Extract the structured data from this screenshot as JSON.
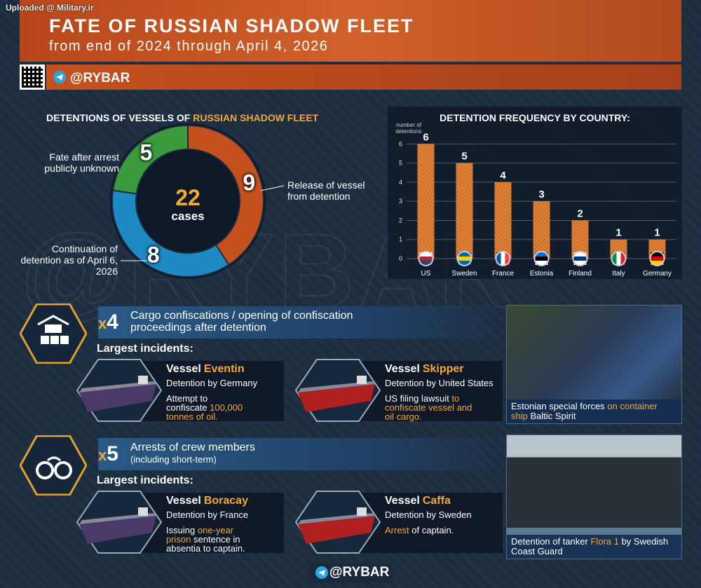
{
  "watermark": "Uploaded @ Military.ir",
  "header": {
    "title": "FATE OF RUSSIAN SHADOW FLEET",
    "subtitle": "from end of 2024 through April 4, 2026",
    "handle": "@RYBAR"
  },
  "chart_data": [
    {
      "type": "donut",
      "title": "DETENTIONS OF VESSELS OF",
      "title_highlight": "RUSSIAN SHADOW FLEET",
      "total": 22,
      "total_label": "cases",
      "categories": [
        "Release of vessel from detention",
        "Continuation of detention as of April 6, 2026",
        "Fate after arrest publicly unknown"
      ],
      "values": [
        9,
        8,
        5
      ],
      "colors": [
        "#c4501e",
        "#1e8ac4",
        "#3a9a3c"
      ]
    },
    {
      "type": "bar",
      "title": "DETENTION FREQUENCY BY COUNTRY:",
      "ylabel": "number of detentions",
      "categories": [
        "US",
        "Sweden",
        "France",
        "Estonia",
        "Finland",
        "Italy",
        "Germany"
      ],
      "values": [
        6,
        5,
        4,
        3,
        2,
        1,
        1
      ],
      "color": "#d0702a",
      "ylim": [
        0,
        6.6
      ],
      "yticks": [
        0,
        1,
        2,
        3,
        4,
        5,
        6
      ],
      "grid": true
    }
  ],
  "sections": [
    {
      "prefix": "x",
      "count": 4,
      "text": "Cargo confiscations / opening of confiscation proceedings after detention",
      "heading": "Largest incidents:",
      "incidents": [
        {
          "label": "Vessel",
          "name": "Eventin",
          "detention": "Detention by Germany",
          "note": [
            {
              "text": "Attempt to confiscate",
              "highlight": false
            },
            {
              "text": "100,000 tonnes of oil.",
              "highlight": true
            }
          ]
        },
        {
          "label": "Vessel",
          "name": "Skipper",
          "detention": "Detention by United States",
          "note": [
            {
              "text": "US filing lawsuit",
              "highlight": false
            },
            {
              "text": "to confiscate vessel and oil cargo.",
              "highlight": true
            }
          ]
        }
      ],
      "photo_caption": [
        {
          "text": "Estonian special forces",
          "highlight": false
        },
        {
          "text": "on container ship",
          "highlight": true
        },
        {
          "text": "Baltic Spirit",
          "highlight": false
        }
      ]
    },
    {
      "prefix": "x",
      "count": 5,
      "text": "Arrests of crew members",
      "subtext": "(including short-term)",
      "heading": "Largest incidents:",
      "incidents": [
        {
          "label": "Vessel",
          "name": "Boracay",
          "detention": "Detention by France",
          "note": [
            {
              "text": "Issuing",
              "highlight": false
            },
            {
              "text": "one-year prison",
              "highlight": true
            },
            {
              "text": "sentence in absentia to captain.",
              "highlight": false
            }
          ]
        },
        {
          "label": "Vessel",
          "name": "Caffa",
          "detention": "Detention by Sweden",
          "note": [
            {
              "text": "Arrest",
              "highlight": true
            },
            {
              "text": "of captain.",
              "highlight": false
            }
          ]
        }
      ],
      "photo_caption": [
        {
          "text": "Detention of tanker",
          "highlight": false
        },
        {
          "text": "Flora 1",
          "highlight": true
        },
        {
          "text": "by Swedish Coast Guard",
          "highlight": false
        }
      ]
    }
  ],
  "footer": {
    "handle": "@RYBAR"
  }
}
